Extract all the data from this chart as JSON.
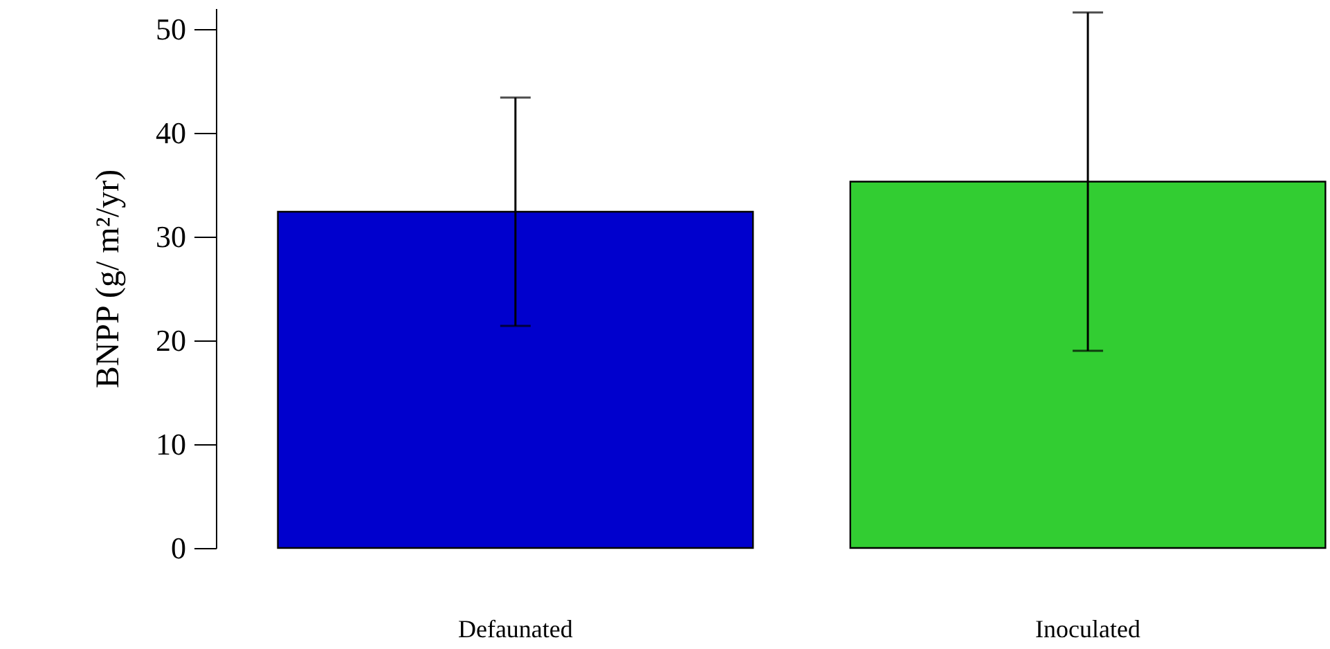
{
  "chart_data": {
    "type": "bar",
    "ylabel": "BNPP (g/ m²/yr)",
    "categories": [
      "Defaunated",
      "Inoculated"
    ],
    "values": [
      32.4,
      35.3
    ],
    "errors": [
      11,
      16.3
    ],
    "colors": [
      "#0000cd",
      "#32cd32"
    ],
    "ylim": [
      0,
      52
    ],
    "yticks": [
      0,
      10,
      20,
      30,
      40,
      50
    ],
    "grid": false
  }
}
